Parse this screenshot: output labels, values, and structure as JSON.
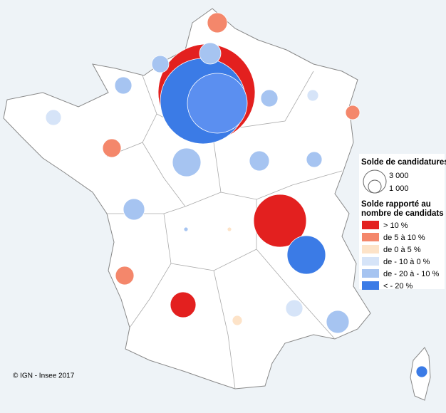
{
  "legend": {
    "size_title": "Solde de candidatures",
    "sizes": [
      {
        "label": "3 000"
      },
      {
        "label": "1 000"
      }
    ],
    "color_title_line1": "Solde rapporté au",
    "color_title_line2": "nombre de candidats",
    "classes": [
      {
        "label": "> 10 %",
        "color": "#e3201f"
      },
      {
        "label": "de 5 à 10 %",
        "color": "#f4876b"
      },
      {
        "label": "de 0 à 5 %",
        "color": "#fde3c8"
      },
      {
        "label": "de - 10 à 0 %",
        "color": "#d6e4f8"
      },
      {
        "label": "de - 20 à - 10 %",
        "color": "#a6c4f1"
      },
      {
        "label": "< - 20 %",
        "color": "#3b7be6"
      }
    ]
  },
  "credit": "© IGN - Insee 2017"
}
